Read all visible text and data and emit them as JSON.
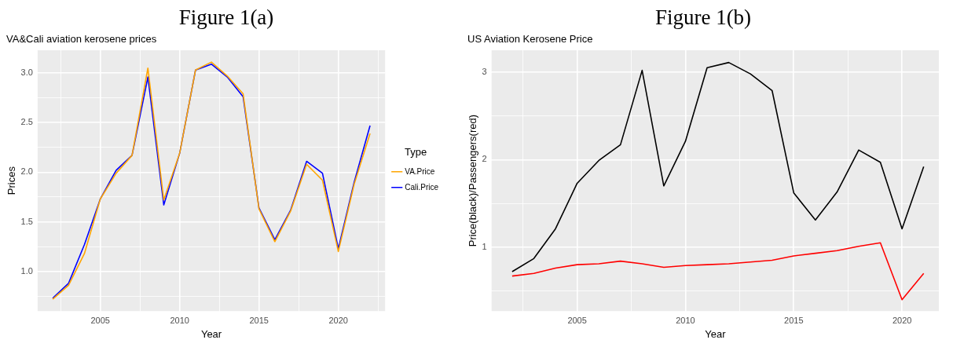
{
  "chart_data": [
    {
      "type": "line",
      "title": "Figure 1(a)",
      "subtitle": "VA&Cali aviation kerosene prices",
      "xlabel": "Year",
      "ylabel": "Prices",
      "legend_title": "Type",
      "legend": "right",
      "grid": true,
      "x": [
        2002,
        2003,
        2004,
        2005,
        2006,
        2007,
        2008,
        2009,
        2010,
        2011,
        2012,
        2013,
        2014,
        2015,
        2016,
        2017,
        2018,
        2019,
        2020,
        2021,
        2022
      ],
      "xlim": [
        2001.05,
        2022.95
      ],
      "xticks": [
        {
          "value": 2002.5,
          "label": null
        },
        2005,
        {
          "value": 2007.5,
          "label": null
        },
        2010,
        {
          "value": 2012.5,
          "label": null
        },
        2015,
        {
          "value": 2017.5,
          "label": null
        },
        2020,
        {
          "value": 2022.5,
          "label": null
        }
      ],
      "ylim": [
        0.6,
        3.23
      ],
      "yticks": [
        {
          "value": 0.75,
          "label": null
        },
        {
          "value": 1,
          "label": "1.0"
        },
        {
          "value": 1.25,
          "label": null
        },
        1.5,
        {
          "value": 1.75,
          "label": null
        },
        {
          "value": 2,
          "label": "2.0"
        },
        {
          "value": 2.25,
          "label": null
        },
        2.5,
        {
          "value": 2.75,
          "label": null
        },
        {
          "value": 3,
          "label": "3.0"
        }
      ],
      "series": [
        {
          "name": "VA.Price",
          "color": "#ffa500",
          "values": [
            0.72,
            0.86,
            1.18,
            1.73,
            1.99,
            2.17,
            3.05,
            1.72,
            2.19,
            3.03,
            3.11,
            2.97,
            2.79,
            1.63,
            1.3,
            1.61,
            2.08,
            1.92,
            1.2,
            1.88,
            2.39
          ]
        },
        {
          "name": "Cali.Price",
          "color": "#0000ff",
          "values": [
            0.73,
            0.88,
            1.27,
            1.73,
            2.02,
            2.17,
            2.96,
            1.67,
            2.19,
            3.03,
            3.09,
            2.96,
            2.76,
            1.64,
            1.32,
            1.62,
            2.11,
            1.99,
            1.23,
            1.9,
            2.47
          ]
        }
      ]
    },
    {
      "type": "line",
      "title": "Figure 1(b)",
      "subtitle": "US Aviation Kerosene Price",
      "xlabel": "Year",
      "ylabel": "Price(black)/Passengers(red)",
      "legend": false,
      "grid": true,
      "x": [
        2002,
        2003,
        2004,
        2005,
        2006,
        2007,
        2008,
        2009,
        2010,
        2011,
        2012,
        2013,
        2014,
        2015,
        2016,
        2017,
        2018,
        2019,
        2020,
        2021
      ],
      "xlim": [
        2001.05,
        2021.7
      ],
      "xticks": [
        {
          "value": 2002.5,
          "label": null
        },
        2005,
        {
          "value": 2007.5,
          "label": null
        },
        2010,
        {
          "value": 2012.5,
          "label": null
        },
        2015,
        {
          "value": 2017.5,
          "label": null
        },
        2020
      ],
      "ylim": [
        0.27,
        3.25
      ],
      "yticks": [
        {
          "value": 0.5,
          "label": null
        },
        1,
        {
          "value": 1.5,
          "label": null
        },
        2,
        {
          "value": 2.5,
          "label": null
        },
        3
      ],
      "series": [
        {
          "color": "#000000",
          "values": [
            0.72,
            0.87,
            1.21,
            1.73,
            1.99,
            2.17,
            3.02,
            1.7,
            2.21,
            3.05,
            3.11,
            2.98,
            2.79,
            1.62,
            1.31,
            1.63,
            2.11,
            1.97,
            1.21,
            1.92
          ]
        },
        {
          "color": "#ff0000",
          "values": [
            0.67,
            0.7,
            0.76,
            0.8,
            0.81,
            0.84,
            0.81,
            0.77,
            0.79,
            0.8,
            0.81,
            0.83,
            0.85,
            0.9,
            0.93,
            0.96,
            1.01,
            1.05,
            0.4,
            0.7
          ]
        }
      ]
    }
  ]
}
